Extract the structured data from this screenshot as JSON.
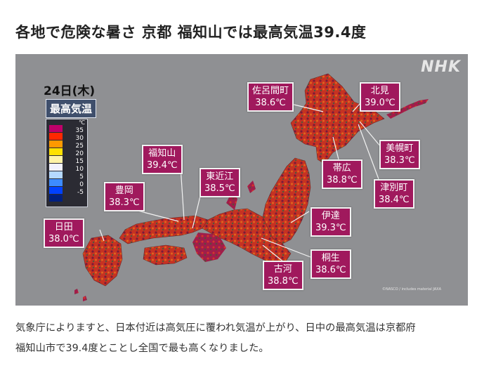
{
  "article": {
    "headline": "各地で危険な暑さ 京都 福知山では最高気温39.4度",
    "body_lines": [
      "気象庁によりますと、日本付近は高気圧に覆われ気温が上がり、日中の最高気温は京都府",
      "福知山市で39.4度とことし全国で最も高くなりました。"
    ]
  },
  "map": {
    "broadcaster": "NHK",
    "date_label": "24日(木)",
    "metric_label": "最高気温",
    "credit": "©NASCO / includes material JAXA",
    "legend": {
      "unit": "℃",
      "ticks": [
        "35",
        "30",
        "25",
        "20",
        "15",
        "10",
        "5",
        "0",
        "-5"
      ],
      "colors": [
        "#c0006a",
        "#ff2800",
        "#ff9900",
        "#ffe100",
        "#fff3a8",
        "#f2f2ff",
        "#b5d8ff",
        "#3d8bff",
        "#0041ff",
        "#002080"
      ]
    },
    "stations": [
      {
        "name": "佐呂間町",
        "temp": "38.6℃"
      },
      {
        "name": "北見",
        "temp": "39.0℃"
      },
      {
        "name": "美幌町",
        "temp": "38.3℃"
      },
      {
        "name": "帯広",
        "temp": "38.8℃"
      },
      {
        "name": "津別町",
        "temp": "38.4℃"
      },
      {
        "name": "福知山",
        "temp": "39.4℃"
      },
      {
        "name": "東近江",
        "temp": "38.5℃"
      },
      {
        "name": "豊岡",
        "temp": "38.3℃"
      },
      {
        "name": "伊達",
        "temp": "39.3℃"
      },
      {
        "name": "日田",
        "temp": "38.0℃"
      },
      {
        "name": "桐生",
        "temp": "38.6℃"
      },
      {
        "name": "古河",
        "temp": "38.8℃"
      }
    ]
  }
}
